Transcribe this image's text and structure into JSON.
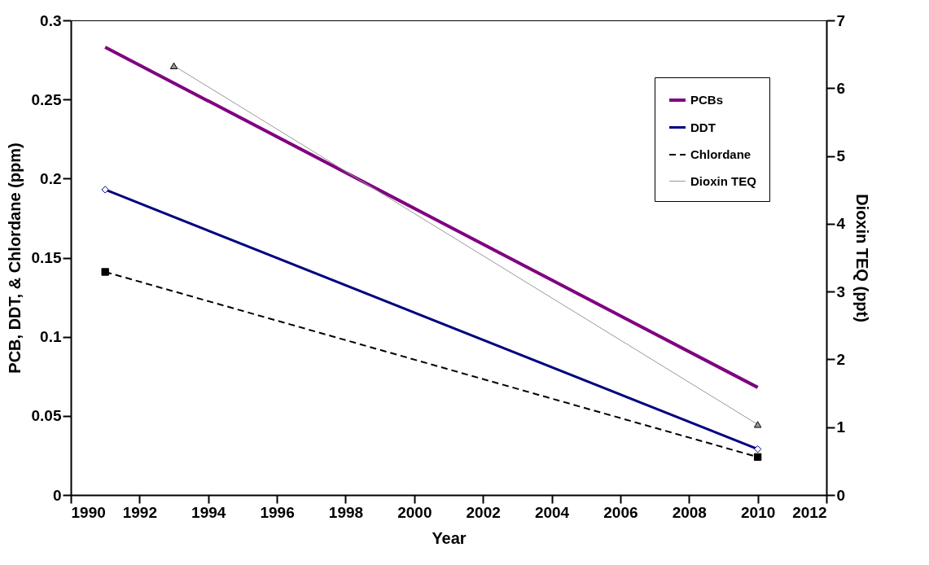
{
  "chart_data": {
    "type": "line",
    "xlabel": "Year",
    "ylabel": "PCB, DDT, & Chlordane (ppm)",
    "y2label": "Dioxin TEQ (ppt)",
    "xlim": [
      1990,
      2012
    ],
    "xticks": [
      1990,
      1992,
      1994,
      1996,
      1998,
      2000,
      2002,
      2004,
      2006,
      2008,
      2010,
      2012
    ],
    "ylim": [
      0,
      0.3
    ],
    "yticks": [
      0,
      0.05,
      0.1,
      0.15,
      0.2,
      0.25,
      0.3
    ],
    "y2lim": [
      0,
      7
    ],
    "y2ticks": [
      0,
      1,
      2,
      3,
      4,
      5,
      6,
      7
    ],
    "grid": false,
    "legend": "top right",
    "series": [
      {
        "name": "PCBs",
        "color": "#800080",
        "x": [
          1991,
          2010
        ],
        "values": [
          0.283,
          0.068
        ],
        "marker": "none",
        "line_style": "solid"
      },
      {
        "name": "DDT",
        "color": "#000080",
        "x": [
          1991,
          2010
        ],
        "values": [
          0.193,
          0.029
        ],
        "marker": "diamond",
        "line_style": "solid"
      },
      {
        "name": "Chlordane",
        "color": "#000000",
        "x": [
          1991,
          2010
        ],
        "values": [
          0.141,
          0.024
        ],
        "marker": "square",
        "line_style": "dashed"
      },
      {
        "name": "Dioxin TEQ",
        "color": "#999999",
        "x": [
          1993,
          2010
        ],
        "values": [
          6.33,
          1.04
        ],
        "marker": "triangle",
        "line_style": "solid",
        "axis": "y2"
      }
    ]
  }
}
